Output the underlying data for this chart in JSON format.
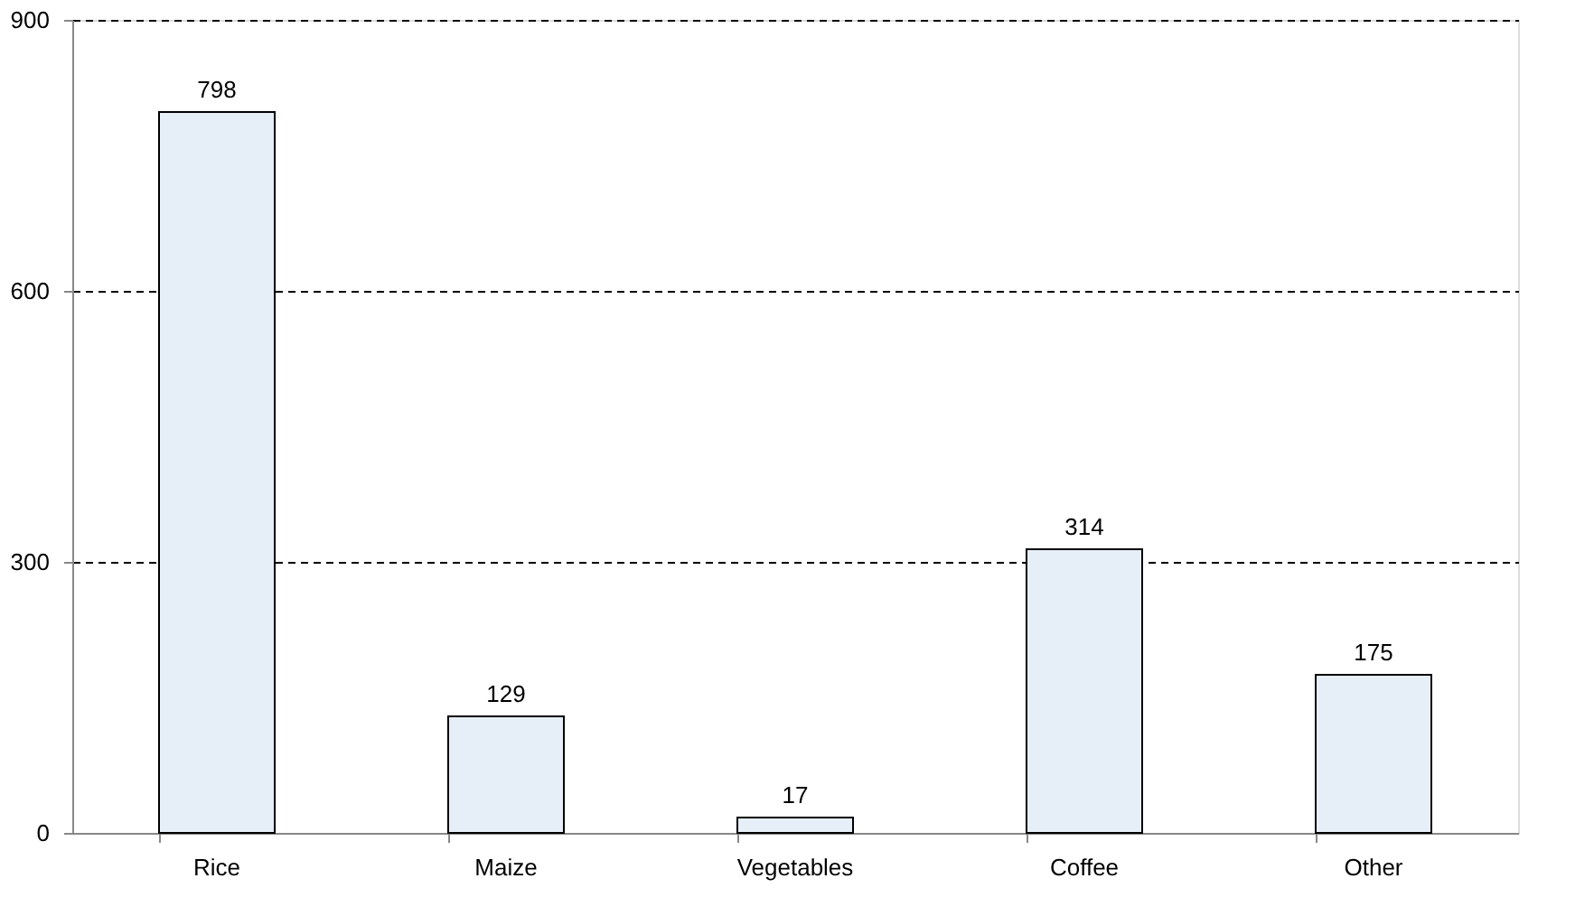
{
  "chart_data": {
    "type": "bar",
    "categories": [
      "Rice",
      "Maize",
      "Vegetables",
      "Coffee",
      "Other"
    ],
    "values": [
      798,
      129,
      17,
      314,
      175
    ],
    "color": "#e6eef8",
    "ylim": [
      0,
      900
    ],
    "yticks": [
      0,
      300,
      600,
      900
    ],
    "grid": "y",
    "data_labels": true
  }
}
